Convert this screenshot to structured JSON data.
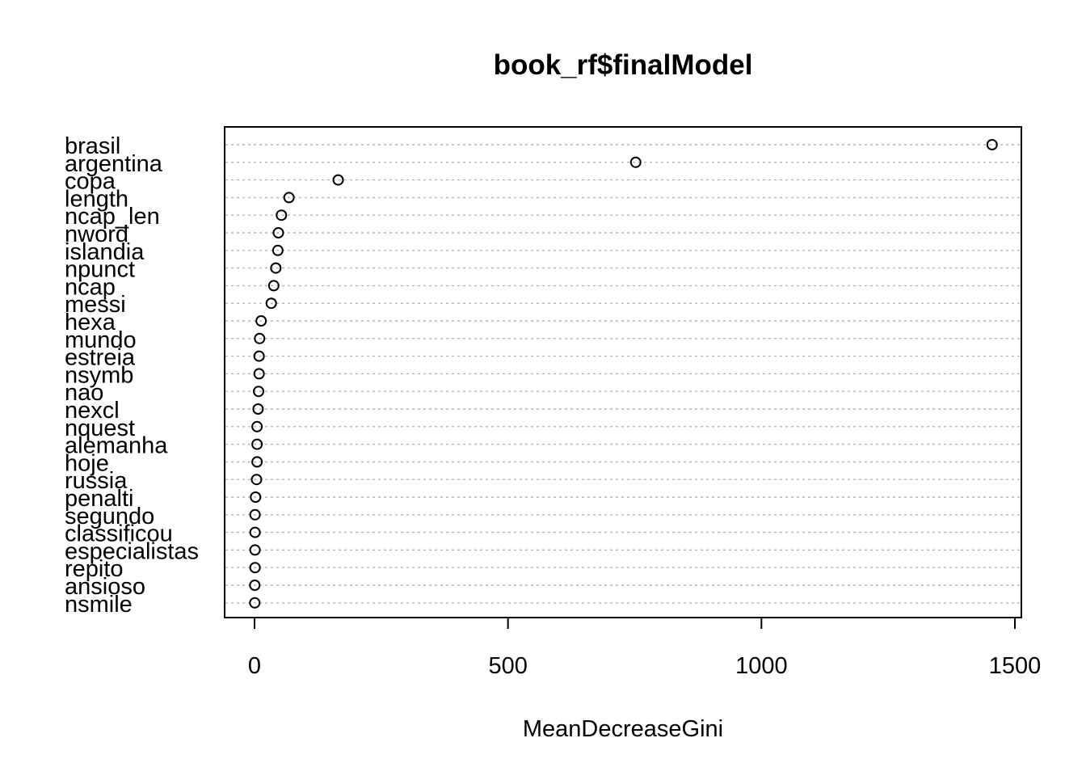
{
  "chart_data": {
    "type": "scatter",
    "subtype": "dotchart",
    "title": "book_rf$finalModel",
    "xlabel": "MeanDecreaseGini",
    "ylabel": "",
    "xlim": [
      -60,
      1520
    ],
    "xticks": [
      0,
      500,
      1000,
      1500
    ],
    "xtick_labels": [
      "0",
      "500",
      "1000",
      "1500"
    ],
    "grid": "dotted horizontal guides",
    "categories": [
      "brasil",
      "argentina",
      "copa",
      "length",
      "ncap_len",
      "nword",
      "islandia",
      "npunct",
      "ncap",
      "messi",
      "hexa",
      "mundo",
      "estreia",
      "nsymb",
      "nao",
      "nexcl",
      "nquest",
      "alemanha",
      "hoje",
      "russia",
      "penalti",
      "segundo",
      "classificou",
      "especialistas",
      "repito",
      "ansioso",
      "nsmile"
    ],
    "values": [
      1455,
      752,
      165,
      68,
      53,
      47,
      46,
      42,
      38,
      33,
      13,
      10,
      9,
      9,
      8,
      7,
      5,
      5,
      5,
      4,
      2,
      1,
      1,
      1,
      1,
      0.5,
      0.5
    ]
  }
}
